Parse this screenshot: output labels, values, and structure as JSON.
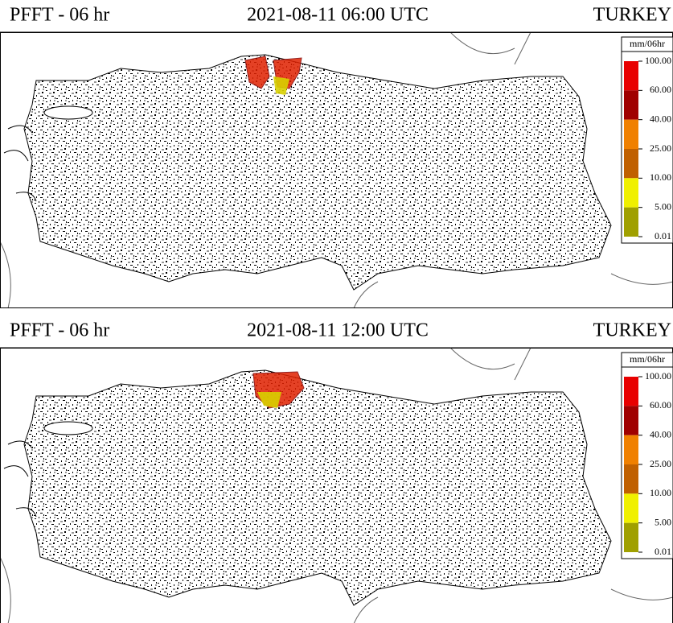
{
  "panels": [
    {
      "title": "PFFT - 06 hr",
      "datetime": "2021-08-11 06:00 UTC",
      "region": "TURKEY",
      "legend": {
        "unit": "mm/06hr",
        "labels": [
          "100.00",
          "60.00",
          "40.00",
          "25.00",
          "10.00",
          "5.00",
          "0.01"
        ],
        "colors": [
          "#e80000",
          "#a00000",
          "#f08000",
          "#c06000",
          "#f0f000",
          "#a0a000"
        ]
      }
    },
    {
      "title": "PFFT - 06 hr",
      "datetime": "2021-08-11 12:00 UTC",
      "region": "TURKEY",
      "legend": {
        "unit": "mm/06hr",
        "labels": [
          "100.00",
          "60.00",
          "40.00",
          "25.00",
          "10.00",
          "5.00",
          "0.01"
        ],
        "colors": [
          "#e80000",
          "#a00000",
          "#f08000",
          "#c06000",
          "#f0f000",
          "#a0a000"
        ]
      }
    }
  ]
}
